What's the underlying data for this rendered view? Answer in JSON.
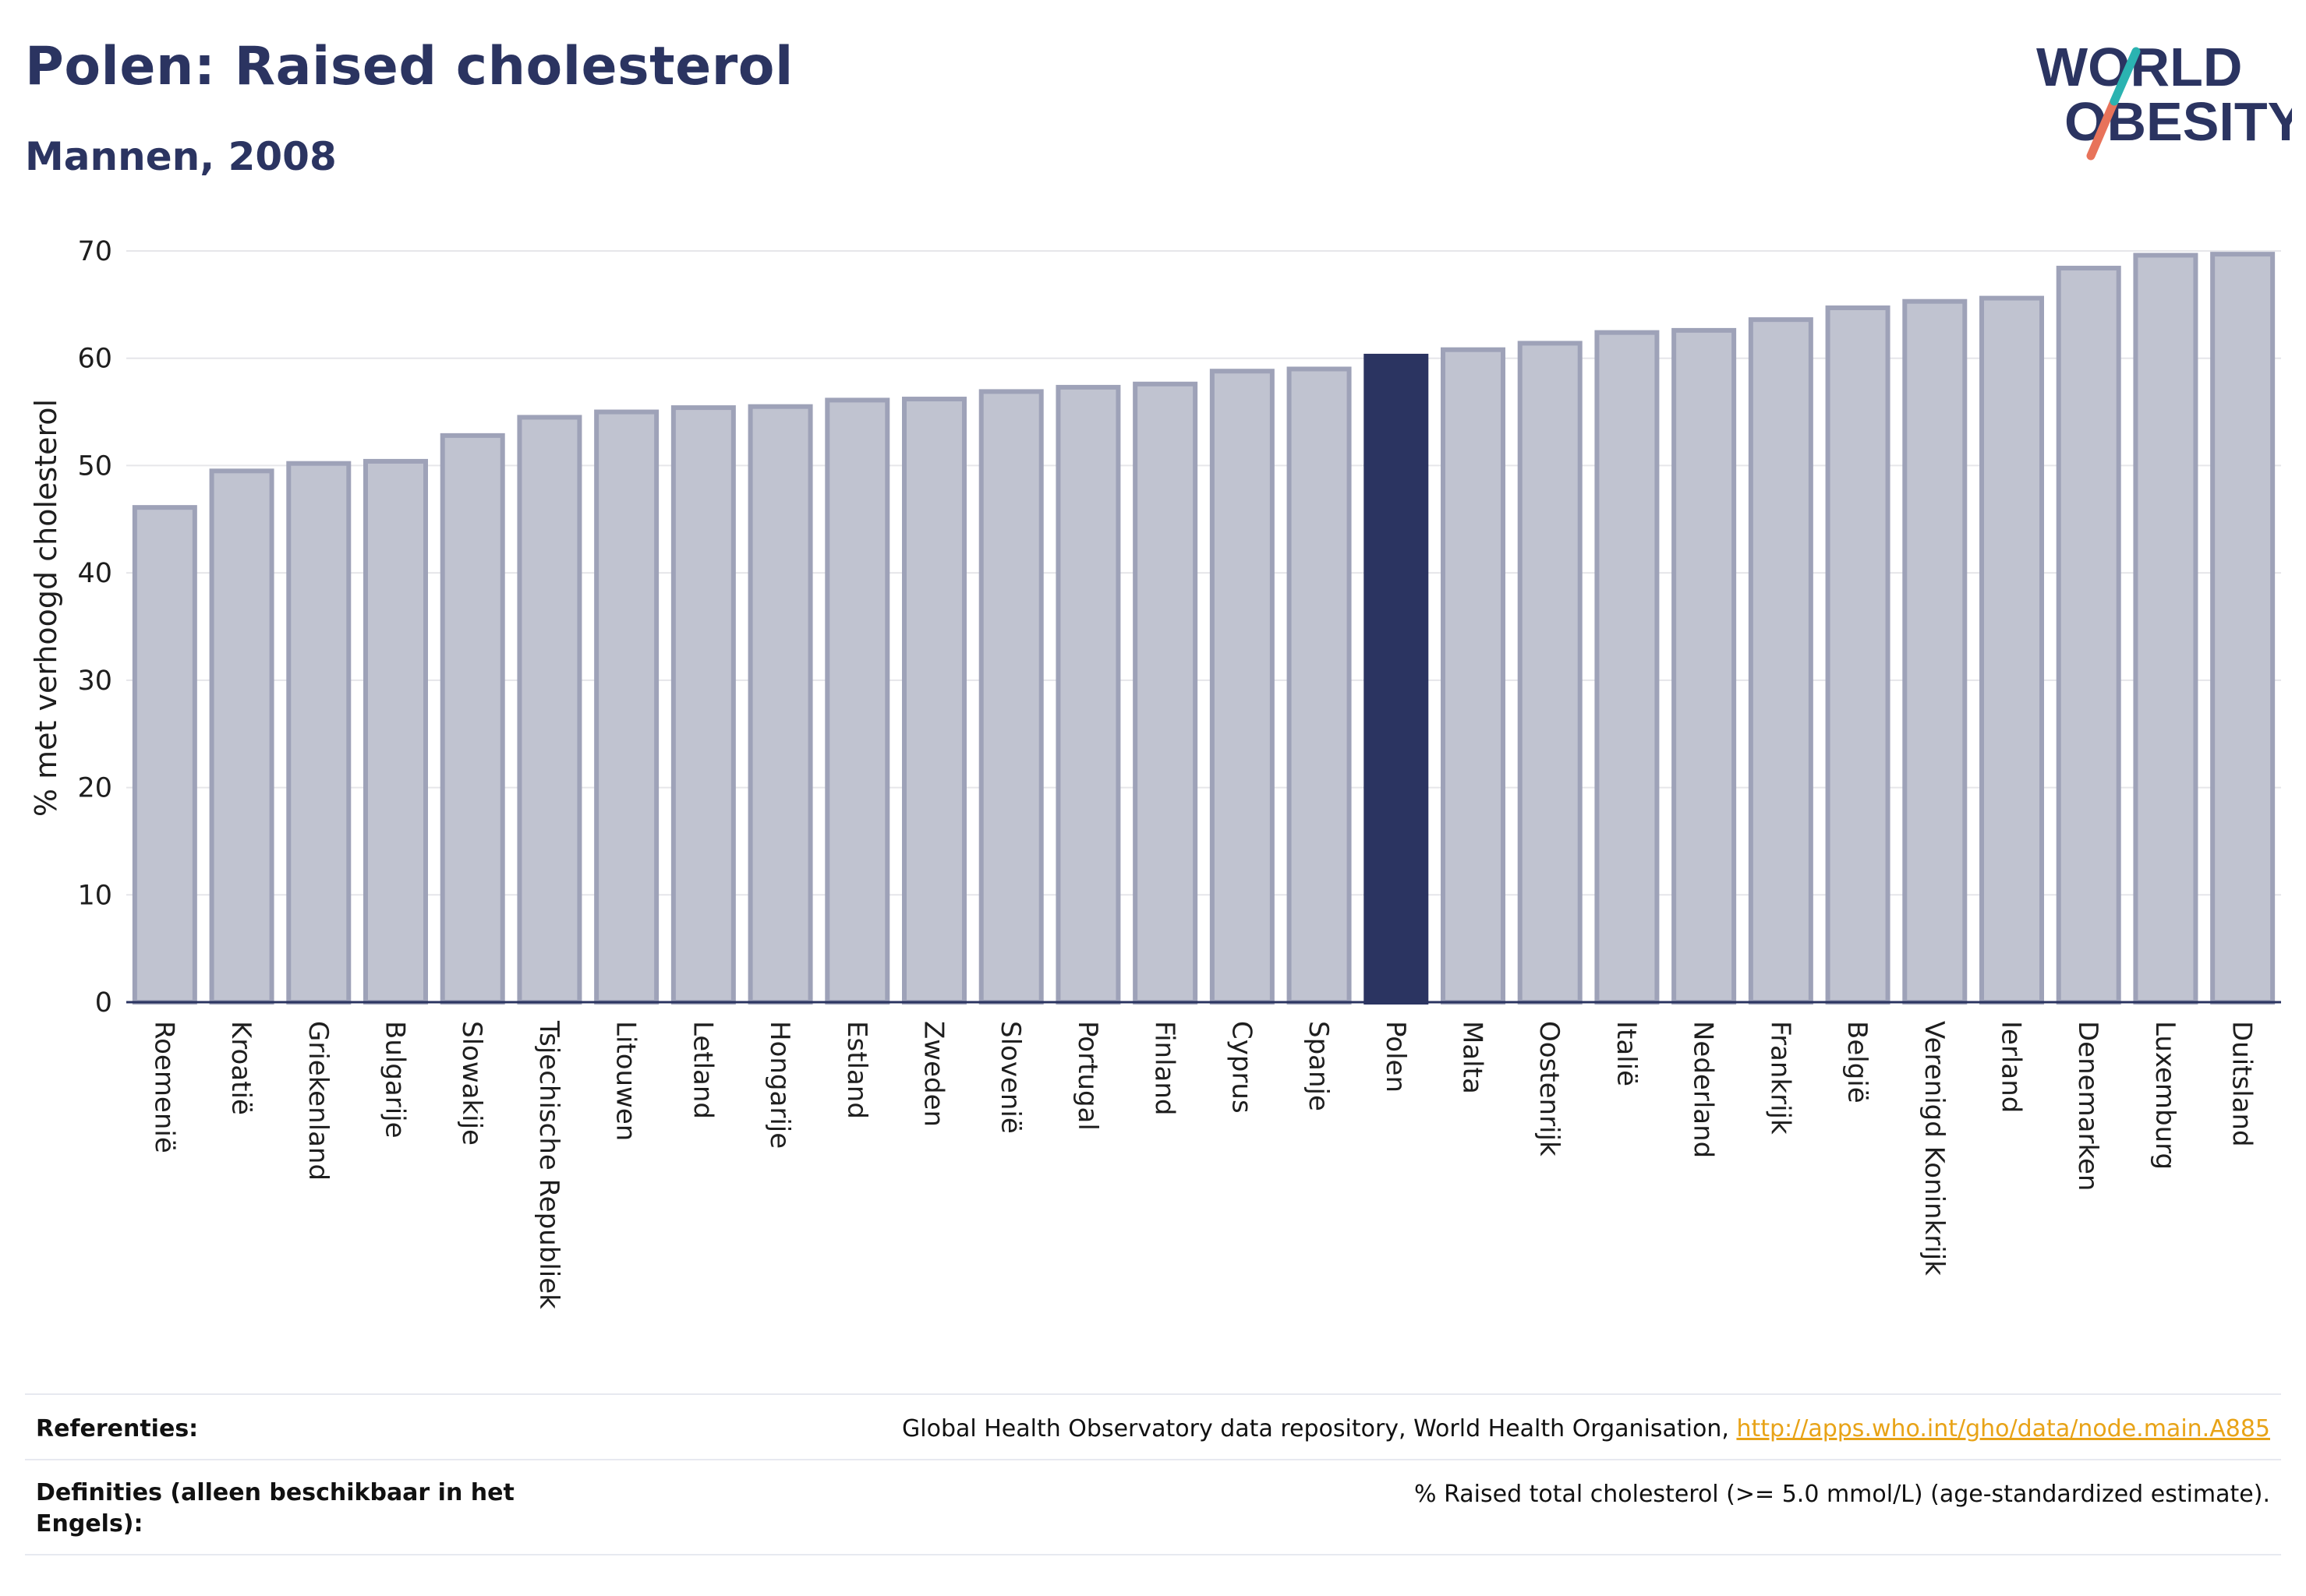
{
  "header": {
    "title": "Polen: Raised cholesterol",
    "subtitle": "Mannen, 2008"
  },
  "logo": {
    "line1": "WORLD",
    "line2": "OBESITY",
    "accent_teal": "#2bb3b1",
    "accent_coral": "#e8735a"
  },
  "colors": {
    "bar": "#c0c3d0",
    "bar_border": "#9ea2b8",
    "highlight": "#2b3461",
    "grid": "#e6e6ea",
    "axis": "#2b3461"
  },
  "chart_data": {
    "type": "bar",
    "ylabel": "% met verhoogd cholesterol",
    "ylim": [
      0,
      70
    ],
    "yticks": [
      "0",
      "10",
      "20",
      "30",
      "40",
      "50",
      "60",
      "70"
    ],
    "highlight_category": "Polen",
    "categories": [
      "Roemenië",
      "Kroatië",
      "Griekenland",
      "Bulgarije",
      "Slowakije",
      "Tsjechische Republiek",
      "Litouwen",
      "Letland",
      "Hongarije",
      "Estland",
      "Zweden",
      "Slovenië",
      "Portugal",
      "Finland",
      "Cyprus",
      "Spanje",
      "Polen",
      "Malta",
      "Oostenrijk",
      "Italië",
      "Nederland",
      "Frankrijk",
      "België",
      "Verenigd Koninkrijk",
      "Ierland",
      "Denemarken",
      "Luxemburg",
      "Duitsland"
    ],
    "values": [
      46.1,
      49.5,
      50.2,
      50.4,
      52.8,
      54.5,
      55.0,
      55.4,
      55.5,
      56.1,
      56.2,
      56.9,
      57.3,
      57.6,
      58.8,
      59.0,
      60.2,
      60.8,
      61.4,
      62.4,
      62.6,
      63.6,
      64.7,
      65.3,
      65.6,
      68.4,
      69.6,
      69.7
    ]
  },
  "footer": {
    "references_label": "Referenties:",
    "references_text": "Global Health Observatory data repository, World Health Organisation, ",
    "references_link": "http://apps.who.int/gho/data/node.main.A885",
    "definitions_label_line1": "Definities (alleen beschikbaar in het",
    "definitions_label_line2": "Engels):",
    "definitions_text": "% Raised total cholesterol (>= 5.0 mmol/L) (age-standardized estimate)."
  }
}
